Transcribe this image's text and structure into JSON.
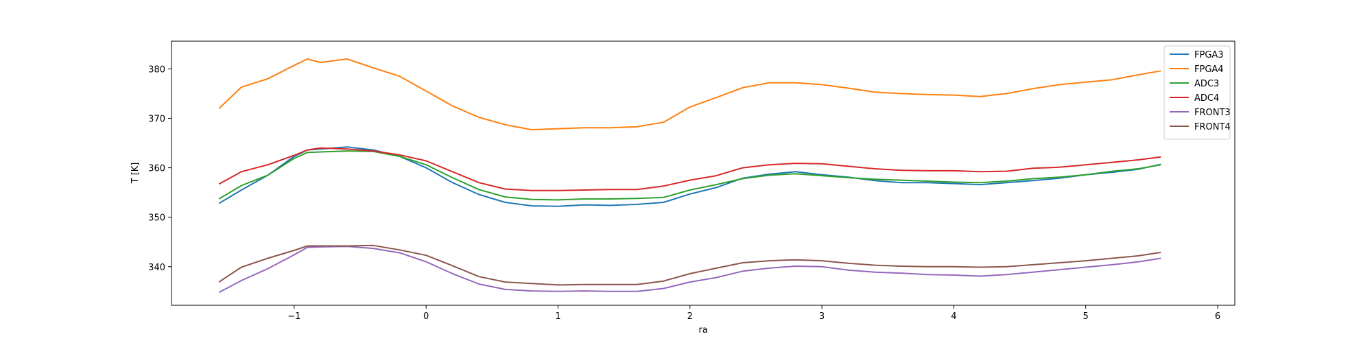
{
  "chart_data": {
    "type": "line",
    "title": "",
    "xlabel": "ra",
    "ylabel": "T [K]",
    "xlim": [
      -1.93,
      6.13
    ],
    "ylim": [
      332.2,
      385.6
    ],
    "xticks": [
      -1,
      0,
      1,
      2,
      3,
      4,
      5,
      6
    ],
    "yticks": [
      340,
      350,
      360,
      370,
      380
    ],
    "grid": false,
    "legend_position": "top-right",
    "x": [
      -1.57,
      -1.4,
      -1.2,
      -1.0,
      -0.9,
      -0.8,
      -0.6,
      -0.4,
      -0.2,
      0.0,
      0.2,
      0.4,
      0.6,
      0.8,
      1.0,
      1.2,
      1.4,
      1.6,
      1.8,
      2.0,
      2.2,
      2.4,
      2.6,
      2.8,
      3.0,
      3.2,
      3.4,
      3.6,
      3.8,
      4.0,
      4.2,
      4.4,
      4.6,
      4.8,
      5.0,
      5.2,
      5.4,
      5.57
    ],
    "series": [
      {
        "name": "FPGA3",
        "color": "#1f77b4",
        "values": [
          352.8,
          355.5,
          358.5,
          362.3,
          363.6,
          363.8,
          364.2,
          363.6,
          362.3,
          360.0,
          357.0,
          354.6,
          353.0,
          352.3,
          352.2,
          352.5,
          352.4,
          352.6,
          353.0,
          354.7,
          356.0,
          357.9,
          358.7,
          359.2,
          358.6,
          358.1,
          357.4,
          357.0,
          357.0,
          356.8,
          356.6,
          357.0,
          357.4,
          357.9,
          358.6,
          359.1,
          359.7,
          360.7
        ]
      },
      {
        "name": "FPGA4",
        "color": "#ff7f0e",
        "values": [
          372.0,
          376.3,
          378.0,
          380.7,
          382.0,
          381.3,
          382.0,
          380.2,
          378.5,
          375.5,
          372.5,
          370.2,
          368.7,
          367.7,
          367.9,
          368.1,
          368.1,
          368.3,
          369.2,
          372.3,
          374.2,
          376.2,
          377.2,
          377.2,
          376.8,
          376.1,
          375.3,
          375.0,
          374.8,
          374.7,
          374.4,
          375.0,
          376.0,
          376.8,
          377.3,
          377.8,
          378.8,
          379.6
        ]
      },
      {
        "name": "ADC3",
        "color": "#2ca02c",
        "values": [
          353.7,
          356.4,
          358.5,
          361.9,
          363.1,
          363.2,
          363.4,
          363.3,
          362.3,
          360.6,
          358.0,
          355.6,
          354.1,
          353.6,
          353.5,
          353.7,
          353.7,
          353.8,
          354.0,
          355.5,
          356.6,
          357.8,
          358.5,
          358.8,
          358.4,
          358.0,
          357.7,
          357.5,
          357.3,
          357.1,
          357.0,
          357.3,
          357.8,
          358.1,
          358.6,
          359.3,
          359.8,
          360.6
        ]
      },
      {
        "name": "ADC4",
        "color": "#d62728",
        "values": [
          356.7,
          359.2,
          360.6,
          362.5,
          363.6,
          364.0,
          363.8,
          363.4,
          362.6,
          361.4,
          359.2,
          357.0,
          355.7,
          355.4,
          355.4,
          355.5,
          355.6,
          355.6,
          356.3,
          357.5,
          358.4,
          360.0,
          360.6,
          360.9,
          360.8,
          360.3,
          359.8,
          359.5,
          359.4,
          359.4,
          359.2,
          359.3,
          359.9,
          360.1,
          360.6,
          361.1,
          361.6,
          362.2
        ]
      },
      {
        "name": "FRONT3",
        "color": "#9467bd",
        "values": [
          334.8,
          337.2,
          339.6,
          342.4,
          343.9,
          344.0,
          344.1,
          343.7,
          342.8,
          341.0,
          338.6,
          336.5,
          335.4,
          335.1,
          335.0,
          335.1,
          335.0,
          335.0,
          335.6,
          336.9,
          337.8,
          339.1,
          339.7,
          340.1,
          340.0,
          339.3,
          338.9,
          338.7,
          338.4,
          338.3,
          338.1,
          338.4,
          338.9,
          339.4,
          339.9,
          340.4,
          341.0,
          341.7
        ]
      },
      {
        "name": "FRONT4",
        "color": "#8c564b",
        "values": [
          336.9,
          339.9,
          341.7,
          343.3,
          344.2,
          344.2,
          344.2,
          344.3,
          343.4,
          342.3,
          340.2,
          338.0,
          336.9,
          336.6,
          336.3,
          336.4,
          336.4,
          336.4,
          337.1,
          338.6,
          339.7,
          340.8,
          341.2,
          341.4,
          341.2,
          340.7,
          340.3,
          340.1,
          340.0,
          340.0,
          339.9,
          340.0,
          340.4,
          340.8,
          341.2,
          341.7,
          342.2,
          342.9
        ]
      }
    ]
  }
}
